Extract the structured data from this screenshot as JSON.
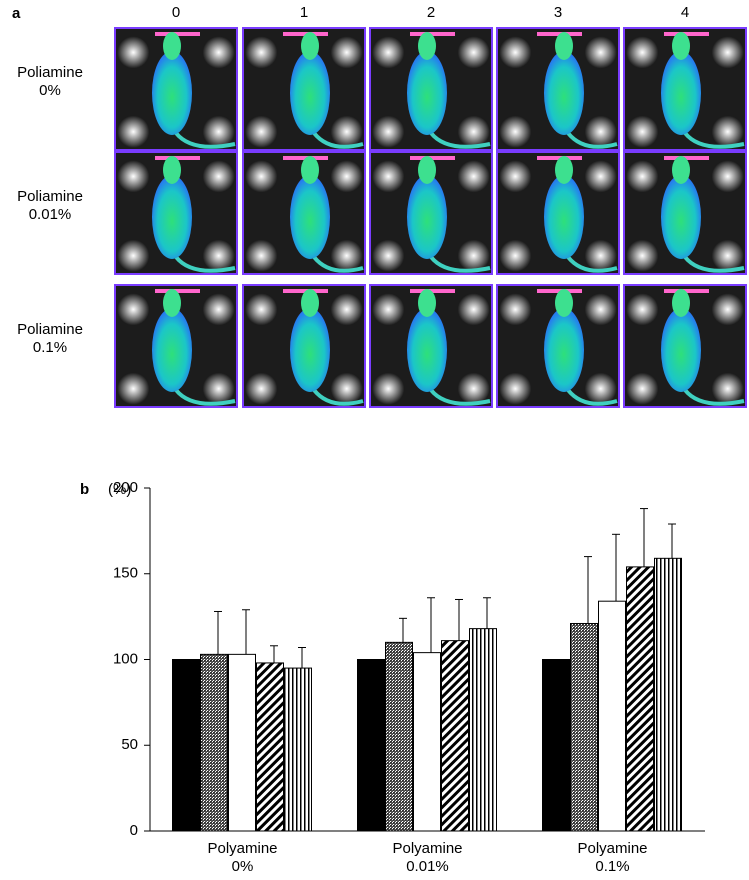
{
  "panel_a": {
    "label": "a",
    "columns": [
      "0",
      "1",
      "2",
      "3",
      "4"
    ],
    "rows": [
      "Poliamine 0%",
      "Poliamine 0.01%",
      "Poliamine 0.1%"
    ]
  },
  "chart_data": {
    "type": "bar",
    "panel_label": "b",
    "ylabel": "(%)",
    "categories": [
      "Polyamine 0%",
      "Polyamine 0.01%",
      "Polyamine 0.1%"
    ],
    "series": [
      {
        "color": "#000000",
        "pattern": "solid",
        "values": [
          100,
          100,
          100
        ],
        "errors": [
          null,
          null,
          null
        ]
      },
      {
        "color": "#555555",
        "pattern": "dots",
        "values": [
          103,
          110,
          121
        ],
        "errors": [
          25,
          14,
          39
        ]
      },
      {
        "color": "#ffffff",
        "pattern": "solid",
        "values": [
          103,
          104,
          134
        ],
        "errors": [
          26,
          32,
          39
        ]
      },
      {
        "color": "#000000",
        "pattern": "diagonal",
        "values": [
          98,
          111,
          154
        ],
        "errors": [
          10,
          24,
          34
        ]
      },
      {
        "color": "#000000",
        "pattern": "vertical",
        "values": [
          95,
          118,
          159
        ],
        "errors": [
          12,
          18,
          20
        ]
      }
    ],
    "ylim": [
      0,
      200
    ],
    "yticks": [
      0,
      50,
      100,
      150,
      200
    ],
    "grid": false
  }
}
